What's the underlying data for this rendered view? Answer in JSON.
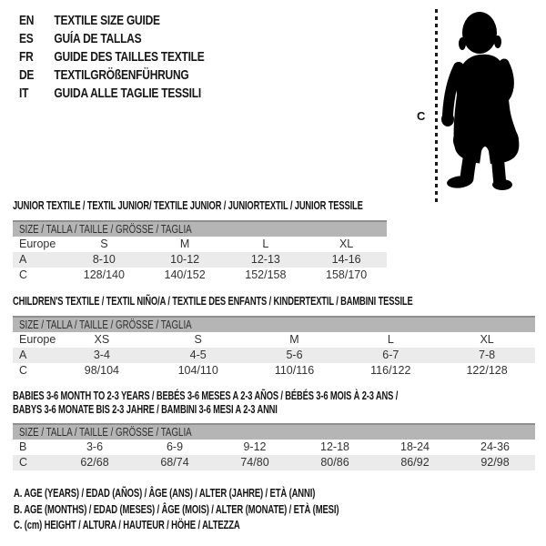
{
  "colors": {
    "background": "#ffffff",
    "text": "#1a1a1a",
    "table_header_bg": "#b5b5b5",
    "table_header_edge": "#8f8f8f",
    "row_shade": "#ebebeb",
    "silhouette": "#000000"
  },
  "language_guide": {
    "items": [
      {
        "code": "EN",
        "label": "TEXTILE SIZE GUIDE"
      },
      {
        "code": "ES",
        "label": "GUÍA DE TALLAS"
      },
      {
        "code": "FR",
        "label": "GUIDE DES TAILLES TEXTILE"
      },
      {
        "code": "DE",
        "label": "TEXTILGRÖßENFÜHRUNG"
      },
      {
        "code": "IT",
        "label": "GUIDA ALLE TAGLIE TESSILI"
      }
    ]
  },
  "figure": {
    "height_marker_label": "C"
  },
  "size_tables": [
    {
      "id": "junior-textile",
      "title_lines": [
        "JUNIOR TEXTILE / TEXTIL JUNIOR/ TEXTILE JUNIOR / JUNIORTEXTIL / JUNIOR TESSILE"
      ],
      "size_header": "SIZE / TALLA / TAILLE / GRÖSSE / TAGLIA",
      "rows": [
        {
          "label": "Europe",
          "shaded": false,
          "values": [
            "S",
            "M",
            "L",
            "XL"
          ]
        },
        {
          "label": "A",
          "shaded": true,
          "values": [
            "8-10",
            "10-12",
            "12-13",
            "14-16"
          ]
        },
        {
          "label": "C",
          "shaded": false,
          "values": [
            "128/140",
            "140/152",
            "152/158",
            "158/170"
          ]
        }
      ]
    },
    {
      "id": "childrens-textile",
      "title_lines": [
        "CHILDREN'S TEXTILE / TEXTIL NIÑO/A / TEXTILE DES ENFANTS / KINDERTEXTIL / BAMBINI TESSILE"
      ],
      "size_header": "SIZE / TALLA / TAILLE / GRÖSSE / TAGLIA",
      "rows": [
        {
          "label": "Europe",
          "shaded": false,
          "values": [
            "XS",
            "S",
            "M",
            "L",
            "XL"
          ]
        },
        {
          "label": "A",
          "shaded": true,
          "values": [
            "3-4",
            "4-5",
            "5-6",
            "6-7",
            "7-8"
          ]
        },
        {
          "label": "C",
          "shaded": false,
          "values": [
            "98/104",
            "104/110",
            "110/116",
            "116/122",
            "122/128"
          ]
        }
      ]
    },
    {
      "id": "babies-textile",
      "title_lines": [
        "BABIES 3-6 MONTH TO 2-3 YEARS / BEBÉS 3-6 MESES A 2-3 AÑOS / BÉBÉS 3-6 MOIS À 2-3 ANS /",
        "BABYS 3-6 MONATE BIS 2-3 JAHRE / BAMBINI 3-6 MESI A 2-3 ANNI"
      ],
      "size_header": "SIZE / TALLA / TAILLE / GRÖSSE / TAGLIA",
      "rows": [
        {
          "label": "B",
          "shaded": false,
          "values": [
            "3-6",
            "6-9",
            "9-12",
            "12-18",
            "18-24",
            "24-36"
          ]
        },
        {
          "label": "C",
          "shaded": true,
          "values": [
            "62/68",
            "68/74",
            "74/80",
            "80/86",
            "86/92",
            "92/98"
          ]
        }
      ]
    }
  ],
  "legend": {
    "lines": [
      "A. AGE (YEARS) / EDAD (AÑOS) / ÂGE (ANS) / ALTER (JAHRE) / ETÀ (ANNI)",
      "B. AGE (MONTHS) / EDAD (MESES) / ÂGE (MOIS) / ALTER (MONATE) / ETÀ (MESI)",
      "C. (cm) HEIGHT / ALTURA / HAUTEUR / HÖHE / ALTEZZA"
    ]
  }
}
